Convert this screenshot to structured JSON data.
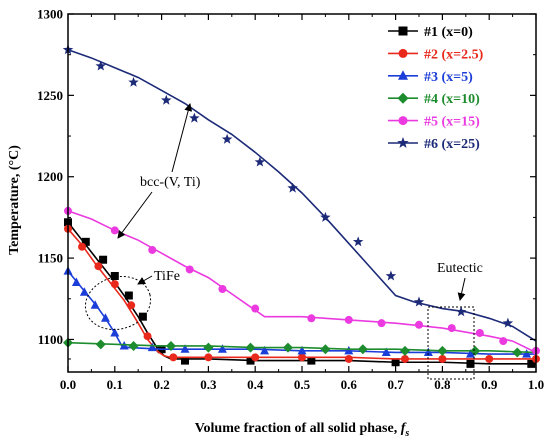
{
  "chart_data": {
    "type": "line",
    "xlabel": "Volume  fraction of all solid phase, ",
    "xlabel_var": "f",
    "xlabel_sub": "s",
    "ylabel": "Temperature, (°C)",
    "xlim": [
      0.0,
      1.0
    ],
    "ylim": [
      1080,
      1300
    ],
    "x_ticks": [
      "0.0",
      "0.1",
      "0.2",
      "0.3",
      "0.4",
      "0.5",
      "0.6",
      "0.7",
      "0.8",
      "0.9",
      "1.0"
    ],
    "y_ticks": [
      "1100",
      "1150",
      "1200",
      "1250",
      "1300"
    ],
    "legend_position": "top-right",
    "series": [
      {
        "name": "#1  (x=0)",
        "color": "#000000",
        "marker": "square",
        "points": [
          [
            0.0,
            1172
          ],
          [
            0.03,
            1161
          ],
          [
            0.06,
            1150
          ],
          [
            0.09,
            1139
          ],
          [
            0.12,
            1127
          ],
          [
            0.15,
            1114
          ],
          [
            0.17,
            1104
          ],
          [
            0.19,
            1095
          ],
          [
            0.205,
            1090
          ],
          [
            0.22,
            1088
          ],
          [
            0.3,
            1088
          ],
          [
            0.4,
            1087
          ],
          [
            0.5,
            1087
          ],
          [
            0.6,
            1087
          ],
          [
            0.7,
            1086
          ],
          [
            0.8,
            1086
          ],
          [
            0.9,
            1085
          ],
          [
            1.0,
            1085
          ]
        ],
        "markers": [
          [
            0.0,
            1172
          ],
          [
            0.038,
            1160
          ],
          [
            0.075,
            1149
          ],
          [
            0.1,
            1139
          ],
          [
            0.13,
            1127
          ],
          [
            0.16,
            1114
          ],
          [
            0.2,
            1094
          ],
          [
            0.25,
            1087
          ],
          [
            0.39,
            1087
          ],
          [
            0.52,
            1087
          ],
          [
            0.7,
            1086
          ],
          [
            0.86,
            1085
          ],
          [
            0.99,
            1085
          ]
        ]
      },
      {
        "name": "#2  (x=2.5)",
        "color": "#e8291c",
        "marker": "circle",
        "points": [
          [
            0.0,
            1168
          ],
          [
            0.03,
            1158
          ],
          [
            0.06,
            1146
          ],
          [
            0.09,
            1135
          ],
          [
            0.12,
            1124
          ],
          [
            0.15,
            1110
          ],
          [
            0.17,
            1100
          ],
          [
            0.19,
            1093
          ],
          [
            0.205,
            1090
          ],
          [
            0.22,
            1089
          ],
          [
            0.3,
            1089
          ],
          [
            0.4,
            1089
          ],
          [
            0.5,
            1089
          ],
          [
            0.6,
            1089
          ],
          [
            0.7,
            1088
          ],
          [
            0.8,
            1088
          ],
          [
            0.9,
            1088
          ],
          [
            1.0,
            1088
          ]
        ],
        "markers": [
          [
            0.0,
            1168
          ],
          [
            0.03,
            1157
          ],
          [
            0.065,
            1145
          ],
          [
            0.1,
            1134
          ],
          [
            0.135,
            1121
          ],
          [
            0.17,
            1102
          ],
          [
            0.225,
            1089
          ],
          [
            0.3,
            1089
          ],
          [
            0.4,
            1089
          ],
          [
            0.5,
            1089
          ],
          [
            0.6,
            1088
          ],
          [
            0.72,
            1088
          ],
          [
            0.8,
            1088
          ],
          [
            0.9,
            1088
          ],
          [
            1.0,
            1088
          ]
        ]
      },
      {
        "name": "#3  (x=5)",
        "color": "#1c3ed8",
        "marker": "triangle",
        "points": [
          [
            0.0,
            1142
          ],
          [
            0.02,
            1135
          ],
          [
            0.04,
            1128
          ],
          [
            0.06,
            1121
          ],
          [
            0.08,
            1113
          ],
          [
            0.1,
            1104
          ],
          [
            0.115,
            1096
          ],
          [
            0.13,
            1095
          ],
          [
            0.2,
            1094
          ],
          [
            0.3,
            1094
          ],
          [
            0.4,
            1094
          ],
          [
            0.5,
            1093
          ],
          [
            0.6,
            1093
          ],
          [
            0.7,
            1092
          ],
          [
            0.8,
            1092
          ],
          [
            0.9,
            1091
          ],
          [
            1.0,
            1091
          ]
        ],
        "markers": [
          [
            0.0,
            1142
          ],
          [
            0.018,
            1135
          ],
          [
            0.035,
            1129
          ],
          [
            0.058,
            1121
          ],
          [
            0.08,
            1113
          ],
          [
            0.1,
            1104
          ],
          [
            0.12,
            1096
          ],
          [
            0.18,
            1095
          ],
          [
            0.25,
            1094
          ],
          [
            0.33,
            1094
          ],
          [
            0.42,
            1093
          ],
          [
            0.5,
            1093
          ],
          [
            0.6,
            1093
          ],
          [
            0.68,
            1092
          ],
          [
            0.77,
            1092
          ],
          [
            0.86,
            1091
          ],
          [
            0.98,
            1091
          ]
        ]
      },
      {
        "name": "#4  (x=10)",
        "color": "#1d8c2e",
        "marker": "diamond",
        "points": [
          [
            0.0,
            1098
          ],
          [
            0.1,
            1097
          ],
          [
            0.2,
            1096
          ],
          [
            0.3,
            1096
          ],
          [
            0.4,
            1095
          ],
          [
            0.5,
            1095
          ],
          [
            0.6,
            1094
          ],
          [
            0.7,
            1094
          ],
          [
            0.8,
            1093
          ],
          [
            0.9,
            1093
          ],
          [
            1.0,
            1092
          ]
        ],
        "markers": [
          [
            0.0,
            1098
          ],
          [
            0.07,
            1097
          ],
          [
            0.14,
            1096
          ],
          [
            0.22,
            1096
          ],
          [
            0.3,
            1095
          ],
          [
            0.39,
            1095
          ],
          [
            0.47,
            1095
          ],
          [
            0.55,
            1094
          ],
          [
            0.63,
            1094
          ],
          [
            0.72,
            1093
          ],
          [
            0.8,
            1093
          ],
          [
            0.87,
            1093
          ],
          [
            0.96,
            1092
          ]
        ]
      },
      {
        "name": "#5  (x=15)",
        "color": "#ea3ae0",
        "marker": "circle",
        "points": [
          [
            0.0,
            1179
          ],
          [
            0.05,
            1174
          ],
          [
            0.1,
            1167
          ],
          [
            0.15,
            1161
          ],
          [
            0.2,
            1153
          ],
          [
            0.25,
            1145
          ],
          [
            0.3,
            1138
          ],
          [
            0.35,
            1128
          ],
          [
            0.39,
            1120
          ],
          [
            0.42,
            1114
          ],
          [
            0.5,
            1114
          ],
          [
            0.6,
            1112
          ],
          [
            0.7,
            1110
          ],
          [
            0.8,
            1107
          ],
          [
            0.9,
            1102
          ],
          [
            0.95,
            1099
          ],
          [
            1.0,
            1092
          ]
        ],
        "markers": [
          [
            0.0,
            1179
          ],
          [
            0.1,
            1167
          ],
          [
            0.18,
            1155
          ],
          [
            0.26,
            1143
          ],
          [
            0.33,
            1131
          ],
          [
            0.4,
            1119
          ],
          [
            0.52,
            1113
          ],
          [
            0.6,
            1112
          ],
          [
            0.67,
            1110
          ],
          [
            0.75,
            1109
          ],
          [
            0.82,
            1107
          ],
          [
            0.88,
            1104
          ],
          [
            0.93,
            1099
          ],
          [
            1.0,
            1093
          ]
        ]
      },
      {
        "name": "#6  (x=25)",
        "color": "#1c2a78",
        "marker": "star",
        "points": [
          [
            0.0,
            1278
          ],
          [
            0.05,
            1273
          ],
          [
            0.1,
            1267
          ],
          [
            0.15,
            1261
          ],
          [
            0.2,
            1253
          ],
          [
            0.25,
            1245
          ],
          [
            0.3,
            1235
          ],
          [
            0.35,
            1226
          ],
          [
            0.4,
            1215
          ],
          [
            0.45,
            1203
          ],
          [
            0.5,
            1190
          ],
          [
            0.55,
            1175
          ],
          [
            0.6,
            1159
          ],
          [
            0.65,
            1143
          ],
          [
            0.7,
            1127
          ],
          [
            0.74,
            1123
          ],
          [
            0.8,
            1119
          ],
          [
            0.85,
            1117
          ],
          [
            0.9,
            1113
          ],
          [
            0.95,
            1108
          ],
          [
            1.0,
            1099
          ]
        ],
        "markers": [
          [
            0.0,
            1278
          ],
          [
            0.07,
            1268
          ],
          [
            0.14,
            1258
          ],
          [
            0.21,
            1247
          ],
          [
            0.27,
            1236
          ],
          [
            0.34,
            1223
          ],
          [
            0.41,
            1209
          ],
          [
            0.48,
            1193
          ],
          [
            0.55,
            1175
          ],
          [
            0.62,
            1160
          ],
          [
            0.69,
            1139
          ],
          [
            0.75,
            1123
          ],
          [
            0.84,
            1117
          ],
          [
            0.94,
            1110
          ]
        ]
      }
    ],
    "annotations": {
      "bcc": "bcc-(V, Ti)",
      "tife": "TiFe",
      "eutectic": "Eutectic"
    }
  }
}
